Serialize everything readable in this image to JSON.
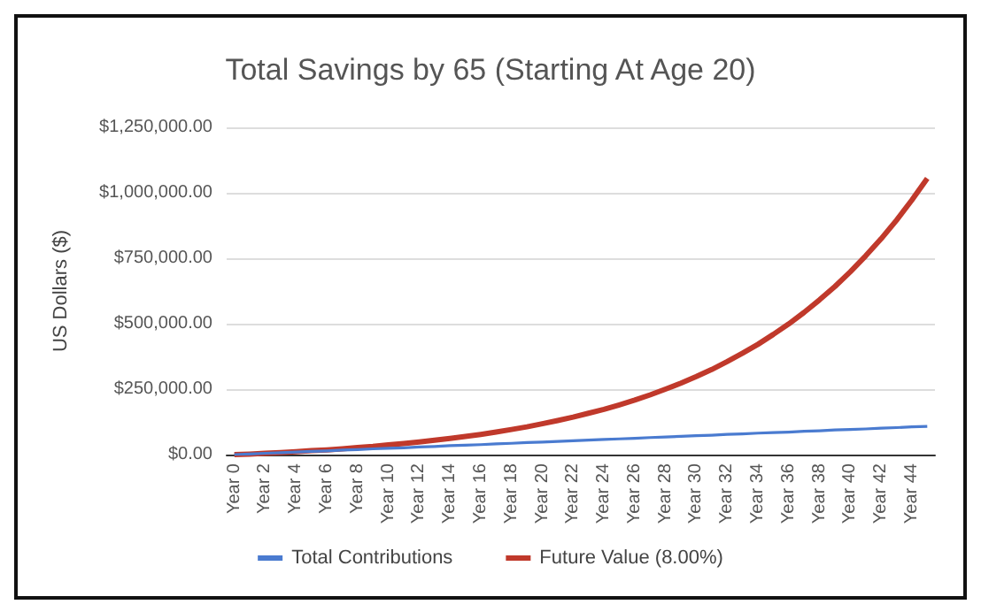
{
  "chart_data": {
    "type": "line",
    "title": "Total Savings by 65 (Starting At Age 20)",
    "ylabel": "US Dollars ($)",
    "categories": [
      "Year 0",
      null,
      "Year 2",
      null,
      "Year 4",
      null,
      "Year 6",
      null,
      "Year 8",
      null,
      "Year 10",
      null,
      "Year 12",
      null,
      "Year 14",
      null,
      "Year 16",
      null,
      "Year 18",
      null,
      "Year 20",
      null,
      "Year 22",
      null,
      "Year 24",
      null,
      "Year 26",
      null,
      "Year 28",
      null,
      "Year 30",
      null,
      "Year 32",
      null,
      "Year 34",
      null,
      "Year 36",
      null,
      "Year 38",
      null,
      "Year 40",
      null,
      "Year 42",
      null,
      "Year 44",
      null
    ],
    "series": [
      {
        "name": "Total Contributions",
        "color": "#4a7bd0",
        "values": [
          0,
          2000,
          5000,
          7000,
          10000,
          12000,
          14000,
          17000,
          19000,
          22000,
          24000,
          26000,
          29000,
          31000,
          34000,
          36000,
          38000,
          41000,
          43000,
          46000,
          48000,
          50000,
          53000,
          55000,
          58000,
          60000,
          62000,
          65000,
          67000,
          70000,
          72000,
          74000,
          77000,
          79000,
          82000,
          84000,
          86000,
          89000,
          91000,
          94000,
          96000,
          98000,
          101000,
          103000,
          106000,
          108000
        ]
      },
      {
        "name": "Future Value (8.00%)",
        "color": "#c0392b",
        "values": [
          0,
          2000,
          5000,
          8000,
          11000,
          15000,
          18000,
          22000,
          27000,
          31000,
          37000,
          42000,
          48000,
          55000,
          62000,
          69000,
          77000,
          86000,
          96000,
          106000,
          118000,
          130000,
          143000,
          158000,
          173000,
          190000,
          208000,
          228000,
          250000,
          273000,
          298000,
          325000,
          355000,
          387000,
          421000,
          459000,
          499000,
          543000,
          591000,
          642000,
          698000,
          759000,
          824000,
          895000,
          972000,
          1055000
        ]
      }
    ],
    "ylim": [
      0,
      1250000
    ],
    "yticks": [
      {
        "value": 0,
        "label": "$0.00"
      },
      {
        "value": 250000,
        "label": "$250,000.00"
      },
      {
        "value": 500000,
        "label": "$500,000.00"
      },
      {
        "value": 750000,
        "label": "$750,000.00"
      },
      {
        "value": 1000000,
        "label": "$1,000,000.00"
      },
      {
        "value": 1250000,
        "label": "$1,250,000.00"
      }
    ],
    "grid": "y",
    "legend": "bottom",
    "marker": "none",
    "line_style": "solid"
  }
}
